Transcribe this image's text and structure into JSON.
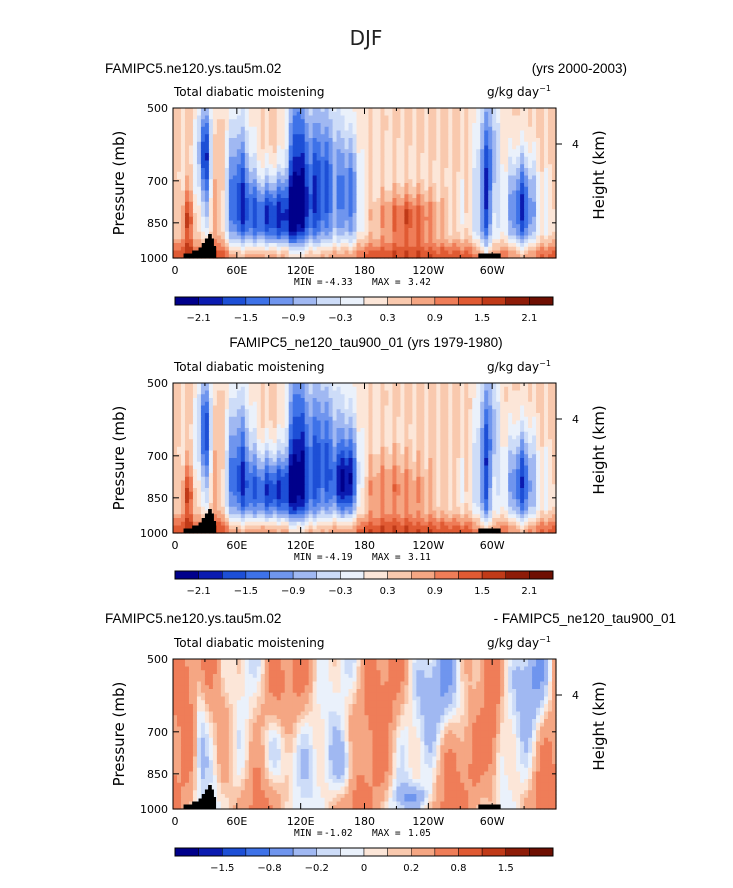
{
  "figure": {
    "season": "DJF"
  },
  "colors": {
    "scale": [
      "#00008b",
      "#0b1bb0",
      "#1d4fd6",
      "#3e72e8",
      "#6f95ee",
      "#a0b8f2",
      "#cddcf8",
      "#eaf1fb",
      "#fce6d8",
      "#f9c9ae",
      "#f5a683",
      "#ef7d58",
      "#e05a33",
      "#c03a18",
      "#8e1c08",
      "#6e0f02"
    ],
    "land": "#000000"
  },
  "chart_data": [
    {
      "id": "panel1",
      "type": "heatmap",
      "title_left": "FAMIPC5.ne120.ys.tau5m.02",
      "title_right": "(yrs 2000-2003)",
      "subtitle": "Total diabatic moistening",
      "units": "g/kg day",
      "units_exp": "−1",
      "ylabel": "Pressure (mb)",
      "ylabel_right": "Height (km)",
      "x_ticklabels": [
        "0",
        "60E",
        "120E",
        "180",
        "120W",
        "60W"
      ],
      "y_ticklabels": [
        "500",
        "700",
        "850",
        "1000"
      ],
      "right_ticklabels": [
        "4"
      ],
      "stats": {
        "min_label": "MIN =",
        "min": "-4.33",
        "max_label": "MAX =",
        "max": "3.42"
      },
      "colorbar_labels": [
        "−2.1",
        "−1.5",
        "−0.9",
        "−0.3",
        "0.3",
        "0.9",
        "1.5",
        "2.1"
      ],
      "colorbar_levels": [
        -2.1,
        -1.8,
        -1.5,
        -1.2,
        -0.9,
        -0.6,
        -0.3,
        0,
        0.3,
        0.6,
        0.9,
        1.2,
        1.5,
        1.8,
        2.1
      ],
      "xlim": [
        0,
        360
      ],
      "ylim": [
        1000,
        500
      ]
    },
    {
      "id": "panel2",
      "type": "heatmap",
      "title_center": "FAMIPC5_ne120_tau900_01 (yrs 1979-1980)",
      "subtitle": "Total diabatic moistening",
      "units": "g/kg day",
      "units_exp": "−1",
      "ylabel": "Pressure (mb)",
      "ylabel_right": "Height (km)",
      "x_ticklabels": [
        "0",
        "60E",
        "120E",
        "180",
        "120W",
        "60W"
      ],
      "y_ticklabels": [
        "500",
        "700",
        "850",
        "1000"
      ],
      "right_ticklabels": [
        "4"
      ],
      "stats": {
        "min_label": "MIN =",
        "min": "-4.19",
        "max_label": "MAX =",
        "max": "3.11"
      },
      "colorbar_labels": [
        "−2.1",
        "−1.5",
        "−0.9",
        "−0.3",
        "0.3",
        "0.9",
        "1.5",
        "2.1"
      ],
      "colorbar_levels": [
        -2.1,
        -1.8,
        -1.5,
        -1.2,
        -0.9,
        -0.6,
        -0.3,
        0,
        0.3,
        0.6,
        0.9,
        1.2,
        1.5,
        1.8,
        2.1
      ],
      "xlim": [
        0,
        360
      ],
      "ylim": [
        1000,
        500
      ]
    },
    {
      "id": "panel3",
      "type": "heatmap",
      "title_left": "FAMIPC5.ne120.ys.tau5m.02",
      "title_right": "- FAMIPC5_ne120_tau900_01",
      "subtitle": "Total diabatic moistening",
      "units": "g/kg day",
      "units_exp": "−1",
      "ylabel": "Pressure (mb)",
      "ylabel_right": "Height (km)",
      "x_ticklabels": [
        "0",
        "60E",
        "120E",
        "180",
        "120W",
        "60W"
      ],
      "y_ticklabels": [
        "500",
        "700",
        "850",
        "1000"
      ],
      "right_ticklabels": [
        "4"
      ],
      "stats": {
        "min_label": "MIN =",
        "min": "-1.02",
        "max_label": "MAX =",
        "max": "1.05"
      },
      "colorbar_labels": [
        "−1.5",
        "−0.8",
        "−0.2",
        "0",
        "0.2",
        "0.8",
        "1.5"
      ],
      "colorbar_levels": [
        -2,
        -1.5,
        -1,
        -0.8,
        -0.4,
        -0.2,
        -0.1,
        0,
        0.1,
        0.2,
        0.4,
        0.8,
        1,
        1.5,
        2
      ],
      "xlim": [
        0,
        360
      ],
      "ylim": [
        1000,
        500
      ]
    }
  ]
}
